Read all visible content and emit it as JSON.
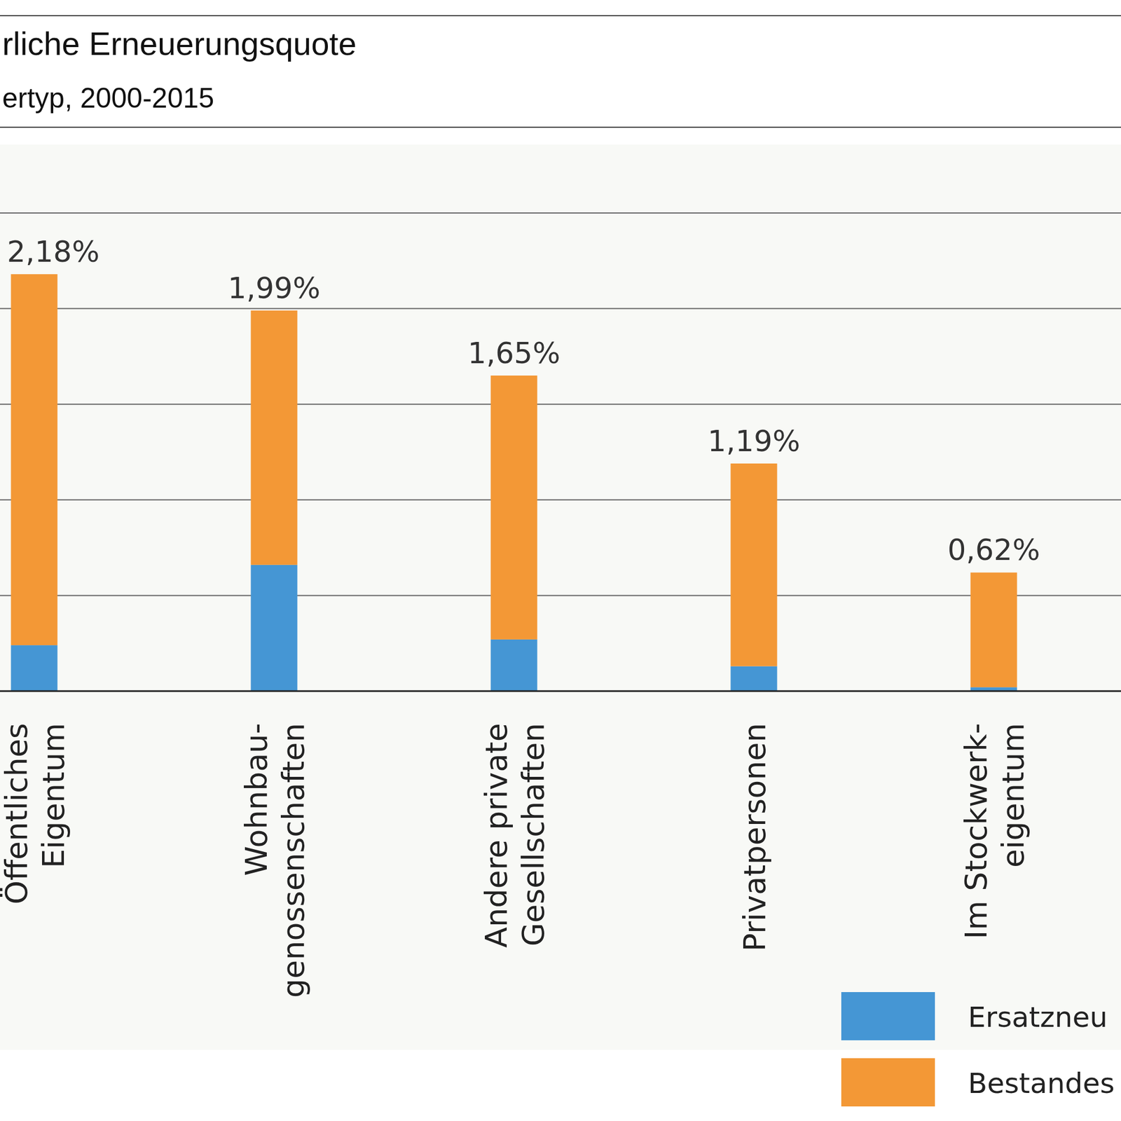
{
  "chart_data": {
    "type": "bar",
    "title": "rliche Erneuerungsquote",
    "subtitle": "ertyp, 2000-2015",
    "categories": [
      "Öffentliches\nEigentum",
      "Wohnbau-\ngenossenschaften",
      "Andere private\nGesellschaften",
      "Privatpersonen",
      "Im Stockwerk-\neigentum"
    ],
    "series": [
      {
        "name": "Ersatzneu",
        "color": "#4596d4",
        "values": [
          0.24,
          0.66,
          0.27,
          0.13,
          0.02
        ]
      },
      {
        "name": "Bestandes",
        "color": "#f39836",
        "values": [
          1.94,
          1.33,
          1.38,
          1.06,
          0.6
        ]
      }
    ],
    "totals": [
      2.18,
      1.99,
      1.65,
      1.19,
      0.62
    ],
    "total_labels": [
      "2,18%",
      "1,99%",
      "1,65%",
      "1,19%",
      "0,62%"
    ],
    "stacked": true,
    "data_labels": true,
    "ylim": [
      0,
      2.5
    ],
    "yticks": [
      0,
      0.5,
      1,
      1.5,
      2,
      2.5
    ],
    "grid": true,
    "tick_labels": false,
    "legend": "bottom-right"
  }
}
